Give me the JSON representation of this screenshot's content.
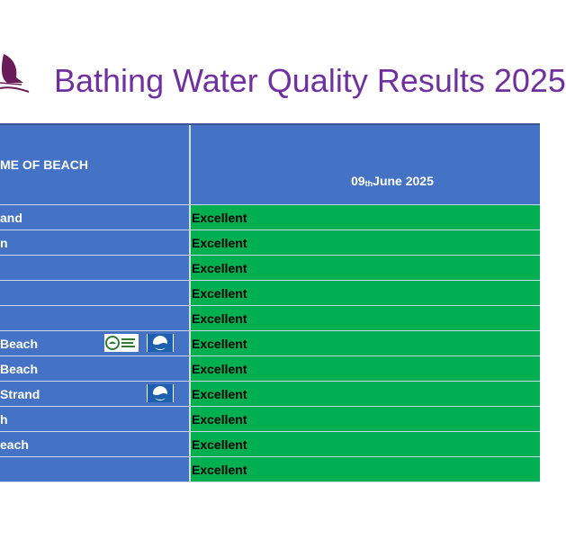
{
  "header": {
    "title": "Bathing Water Quality Results 2025"
  },
  "table": {
    "col1_header": "ME OF BEACH",
    "col2_header": {
      "day": "09",
      "suffix": "th",
      "rest": " June 2025"
    },
    "rows": [
      {
        "name": "and",
        "result": "Excellent",
        "green_coast": false,
        "blue_flag": false
      },
      {
        "name": "n",
        "result": "Excellent",
        "green_coast": false,
        "blue_flag": false
      },
      {
        "name": "",
        "result": "Excellent",
        "green_coast": false,
        "blue_flag": false
      },
      {
        "name": "",
        "result": "Excellent",
        "green_coast": false,
        "blue_flag": false
      },
      {
        "name": "",
        "result": "Excellent",
        "green_coast": false,
        "blue_flag": false
      },
      {
        "name": "Beach",
        "result": "Excellent",
        "green_coast": true,
        "blue_flag": true
      },
      {
        "name": "Beach",
        "result": "Excellent",
        "green_coast": false,
        "blue_flag": false
      },
      {
        "name": "Strand",
        "result": "Excellent",
        "green_coast": false,
        "blue_flag": true
      },
      {
        "name": "h",
        "result": "Excellent",
        "green_coast": false,
        "blue_flag": false
      },
      {
        "name": "each",
        "result": "Excellent",
        "green_coast": false,
        "blue_flag": false
      },
      {
        "name": "",
        "result": "Excellent",
        "green_coast": false,
        "blue_flag": false
      }
    ]
  },
  "colors": {
    "title": "#7030a0",
    "header_bg": "#4472c4",
    "excellent": "#00b050"
  },
  "icons": {
    "logo": "heron-bird-logo",
    "green_coast": "green-coast-award-icon",
    "blue_flag": "blue-flag-icon"
  }
}
